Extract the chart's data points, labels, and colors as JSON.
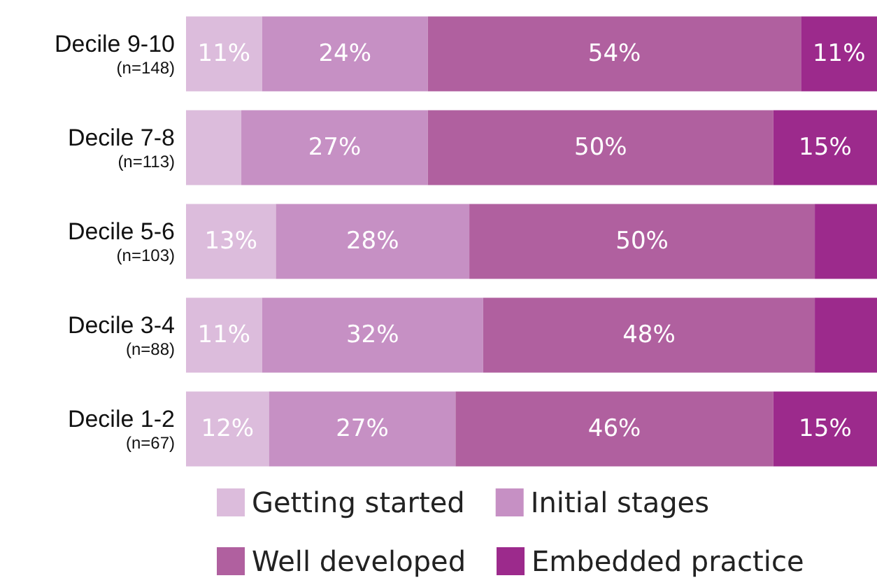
{
  "chart_data": {
    "type": "bar",
    "orientation": "horizontal",
    "stacked": true,
    "categories": [
      "Decile 9-10\n(n=148)",
      "Decile 7-8\n(n=113)",
      "Decile 5-6\n(n=103)",
      "Decile 3-4\n(n=88)",
      "Decile 1-2\n(n=67)"
    ],
    "xlim": [
      0,
      100
    ],
    "tick_labels": "y",
    "legend": "bottom",
    "series": [
      {
        "name": "Getting started",
        "color": "#dcbcdc",
        "values": [
          11,
          8,
          13,
          11,
          12
        ],
        "value_labels": [
          "11%",
          null,
          "13%",
          "11%",
          "12%"
        ]
      },
      {
        "name": "Initial stages",
        "color": "#c690c4",
        "values": [
          24,
          27,
          28,
          32,
          27
        ],
        "value_labels": [
          "24%",
          "27%",
          "28%",
          "32%",
          "27%"
        ]
      },
      {
        "name": "Well developed",
        "color": "#b0609f",
        "values": [
          54,
          50,
          50,
          48,
          46
        ],
        "value_labels": [
          "54%",
          "50%",
          "50%",
          "48%",
          "46%"
        ]
      },
      {
        "name": "Embedded practice",
        "color": "#9c2a8c",
        "values": [
          11,
          15,
          9,
          9,
          15
        ],
        "value_labels": [
          "11%",
          "15%",
          null,
          null,
          "15%"
        ]
      }
    ]
  }
}
